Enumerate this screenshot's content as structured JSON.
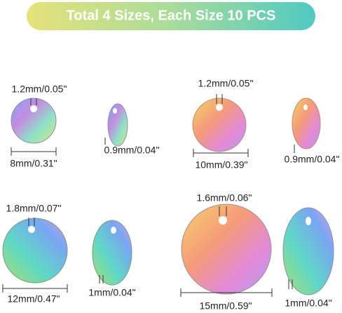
{
  "banner": {
    "title": "Total 4 Sizes, Each Size 10 PCS"
  },
  "groups": [
    {
      "hole": "1.2mm/0.05\"",
      "diameter": "8mm/0.31\"",
      "thickness": "0.9mm/0.04\""
    },
    {
      "hole": "1.2mm/0.05\"",
      "diameter": "10mm/0.39\"",
      "thickness": "0.9mm/0.04\""
    },
    {
      "hole": "1.8mm/0.07\"",
      "diameter": "12mm/0.47\"",
      "thickness": "1mm/0.04\""
    },
    {
      "hole": "1.6mm/0.06\"",
      "diameter": "15mm/0.59\"",
      "thickness": "1mm/0.04\""
    }
  ]
}
